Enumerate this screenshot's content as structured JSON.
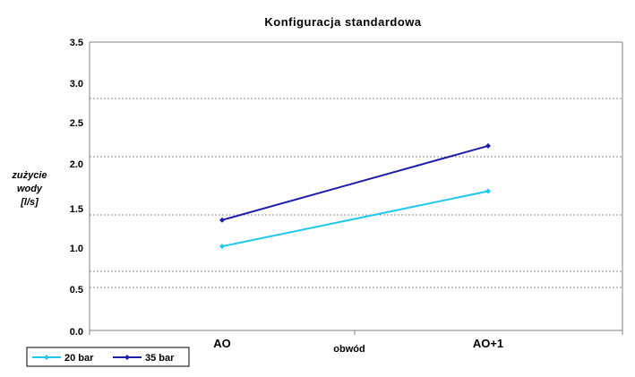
{
  "chart_data": {
    "type": "line",
    "title": "Konfiguracja standardowa",
    "xlabel": "obwód",
    "ylabel_lines": [
      "zużycie",
      "wody",
      "[l/s]"
    ],
    "categories": [
      "AO",
      "AO+1"
    ],
    "yticks": [
      "0.0",
      "0.5",
      "1.0",
      "1.5",
      "2.0",
      "2.5",
      "3.0",
      "3.5"
    ],
    "ylim": [
      0,
      3.5
    ],
    "grid": true,
    "legend_position": "bottom-left",
    "series": [
      {
        "name": "20 bar",
        "color": "#1ec8f0",
        "marker": "diamond",
        "values": [
          1.02,
          1.69
        ]
      },
      {
        "name": "35 bar",
        "color": "#1c1ca8",
        "marker": "diamond",
        "values": [
          1.34,
          2.24
        ]
      }
    ]
  }
}
